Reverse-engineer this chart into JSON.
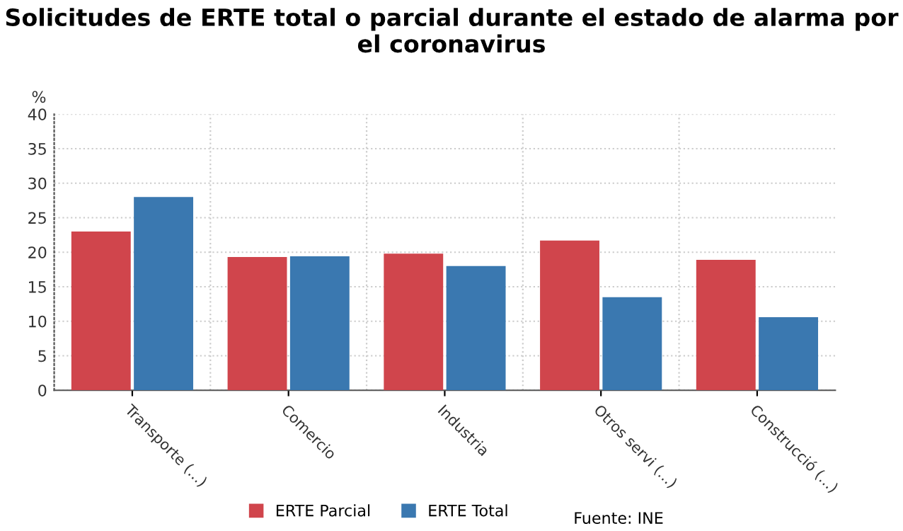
{
  "chart_data": {
    "type": "bar",
    "title": "Solicitudes de ERTE total o parcial durante el estado de alarma por el coronavirus",
    "ylabel": "%",
    "categories": [
      "Transporte (...)",
      "Comercio",
      "Industria",
      "Otros servi (...)",
      "Construcció (...)"
    ],
    "series": [
      {
        "name": "ERTE Parcial",
        "color": "#d0454c",
        "values": [
          23.0,
          19.3,
          19.8,
          21.7,
          18.9
        ]
      },
      {
        "name": "ERTE Total",
        "color": "#3a78b0",
        "values": [
          28.0,
          19.4,
          18.0,
          13.5,
          10.6
        ]
      }
    ],
    "ylim": [
      0,
      40
    ],
    "yticks": [
      0,
      5,
      10,
      15,
      20,
      25,
      30,
      35,
      40
    ],
    "grid": true,
    "legend": "bottom",
    "annotations": [
      "Fuente: INE"
    ]
  }
}
